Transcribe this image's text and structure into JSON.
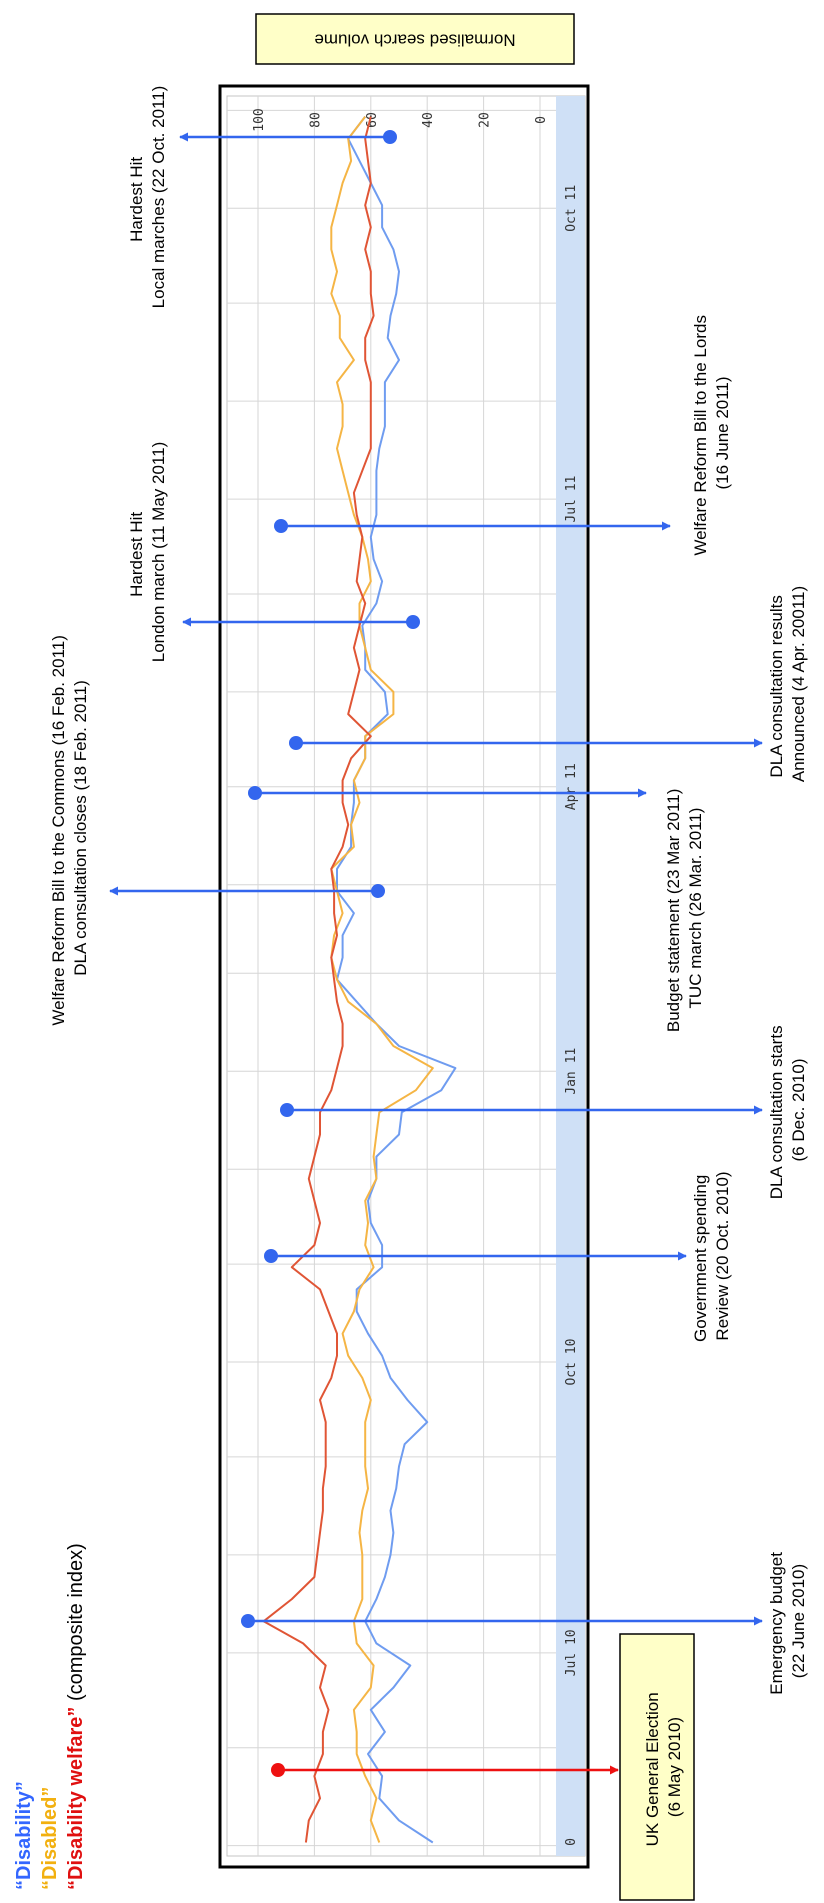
{
  "figure": {
    "legend": [
      {
        "text": "“Disability”",
        "suffix": "",
        "color": "#3366ff"
      },
      {
        "text": "“Disabled”",
        "suffix": "",
        "color": "#f2b010"
      },
      {
        "text": "“Disability welfare”",
        "suffix": " (composite index)",
        "color": "#e01010"
      }
    ],
    "ylabel_box": "Normalised search volume",
    "election_box": [
      "UK General Election",
      "(6 May 2010)"
    ],
    "annotations": {
      "emergency_budget": [
        "Emergency budget",
        "(22 June 2010)"
      ],
      "spending_review": [
        "Government spending",
        "Review (20 Oct. 2010)"
      ],
      "dla_consult_starts": [
        "DLA consultation starts",
        "(6 Dec. 2010)"
      ],
      "budget_tuc": [
        "Budget statement (23 Mar 2011)",
        "TUC march (26 Mar. 2011)"
      ],
      "dla_results": [
        "DLA consultation results",
        "Announced (4 Apr. 20011)"
      ],
      "wrb_lords": [
        "Welfare Reform Bill to the Lords",
        "(16 June 2011)"
      ],
      "wrb_commons": [
        "Welfare Reform Bill to the Commons (16 Feb. 2011)",
        "DLA consultation closes (18 Feb. 2011)"
      ],
      "hardest_hit_london": [
        "Hardest Hit",
        "London march (11 May 2011)"
      ],
      "hardest_hit_local": [
        "Hardest Hit",
        "Local marches (22 Oct. 2011)"
      ]
    }
  },
  "chart_data": {
    "type": "line",
    "orientation": "rotated 90 degrees (time runs top to bottom, value axis left to right reversed)",
    "x_ticks": [
      "0",
      "Jul 10",
      "Oct 10",
      "Jan 11",
      "Apr 11",
      "Jul 11",
      "Oct 11"
    ],
    "y_ticks": [
      0,
      20,
      40,
      60,
      80,
      100
    ],
    "ylim": [
      0,
      100
    ],
    "grid": true,
    "x": [
      "2010-05-02",
      "2010-05-09",
      "2010-05-16",
      "2010-05-23",
      "2010-05-30",
      "2010-06-06",
      "2010-06-13",
      "2010-06-20",
      "2010-06-27",
      "2010-07-04",
      "2010-07-11",
      "2010-07-18",
      "2010-07-25",
      "2010-08-01",
      "2010-08-08",
      "2010-08-15",
      "2010-08-22",
      "2010-08-29",
      "2010-09-05",
      "2010-09-12",
      "2010-09-19",
      "2010-09-26",
      "2010-10-03",
      "2010-10-10",
      "2010-10-17",
      "2010-10-24",
      "2010-10-31",
      "2010-11-07",
      "2010-11-14",
      "2010-11-21",
      "2010-11-28",
      "2010-12-05",
      "2010-12-12",
      "2010-12-19",
      "2010-12-26",
      "2011-01-02",
      "2011-01-09",
      "2011-01-16",
      "2011-01-23",
      "2011-01-30",
      "2011-02-06",
      "2011-02-13",
      "2011-02-20",
      "2011-02-27",
      "2011-03-06",
      "2011-03-13",
      "2011-03-20",
      "2011-03-27",
      "2011-04-03",
      "2011-04-10",
      "2011-04-17",
      "2011-04-24",
      "2011-05-01",
      "2011-05-08",
      "2011-05-15",
      "2011-05-22",
      "2011-05-29",
      "2011-06-05",
      "2011-06-12",
      "2011-06-19",
      "2011-06-26",
      "2011-07-03",
      "2011-07-10",
      "2011-07-17",
      "2011-07-24",
      "2011-07-31",
      "2011-08-07",
      "2011-08-14",
      "2011-08-21",
      "2011-08-28",
      "2011-09-04",
      "2011-09-11",
      "2011-09-18",
      "2011-09-25",
      "2011-10-02",
      "2011-10-09",
      "2011-10-16",
      "2011-10-23",
      "2011-10-30"
    ],
    "series": [
      {
        "name": "“Disability”",
        "color": "#6f9cf0",
        "values": [
          38,
          50,
          57,
          56,
          61,
          55,
          60,
          52,
          46,
          58,
          62,
          58,
          55,
          53,
          52,
          53,
          51,
          50,
          48,
          40,
          47,
          53,
          56,
          61,
          65,
          65,
          56,
          56,
          60,
          61,
          58,
          58,
          50,
          49,
          35,
          30,
          50,
          58,
          65,
          72,
          70,
          70,
          66,
          72,
          72,
          67,
          67,
          66,
          66,
          62,
          62,
          54,
          55,
          62,
          62,
          63,
          58,
          56,
          59,
          60,
          58,
          58,
          58,
          57,
          55,
          55,
          55,
          50,
          54,
          53,
          51,
          50,
          52,
          56,
          56,
          60,
          64,
          68,
          62
        ]
      },
      {
        "name": "“Disabled”",
        "color": "#f5b545",
        "values": [
          57,
          60,
          58,
          62,
          65,
          65,
          66,
          60,
          59,
          65,
          66,
          63,
          63,
          63,
          64,
          63,
          61,
          62,
          62,
          62,
          60,
          63,
          68,
          70,
          66,
          64,
          59,
          62,
          61,
          62,
          58,
          59,
          58,
          57,
          44,
          38,
          52,
          58,
          68,
          72,
          74,
          73,
          70,
          72,
          74,
          66,
          67,
          64,
          66,
          62,
          62,
          52,
          52,
          60,
          62,
          64,
          64,
          60,
          61,
          63,
          66,
          68,
          70,
          72,
          70,
          70,
          72,
          66,
          71,
          71,
          74,
          72,
          74,
          74,
          72,
          70,
          67,
          68,
          62
        ]
      },
      {
        "name": "“Disability welfare”",
        "color": "#e05535",
        "values": [
          83,
          82,
          78,
          80,
          77,
          77,
          75,
          78,
          76,
          84,
          98,
          88,
          80,
          79,
          78,
          77,
          77,
          76,
          76,
          76,
          78,
          74,
          72,
          72,
          75,
          78,
          88,
          80,
          78,
          80,
          82,
          80,
          78,
          78,
          74,
          72,
          70,
          70,
          72,
          73,
          74,
          72,
          73,
          73,
          74,
          70,
          68,
          70,
          70,
          67,
          60,
          68,
          66,
          64,
          66,
          64,
          62,
          65,
          64,
          63,
          65,
          66,
          63,
          60,
          60,
          60,
          60,
          62,
          62,
          59,
          60,
          60,
          62,
          60,
          62,
          60,
          61,
          62,
          60
        ]
      }
    ]
  }
}
